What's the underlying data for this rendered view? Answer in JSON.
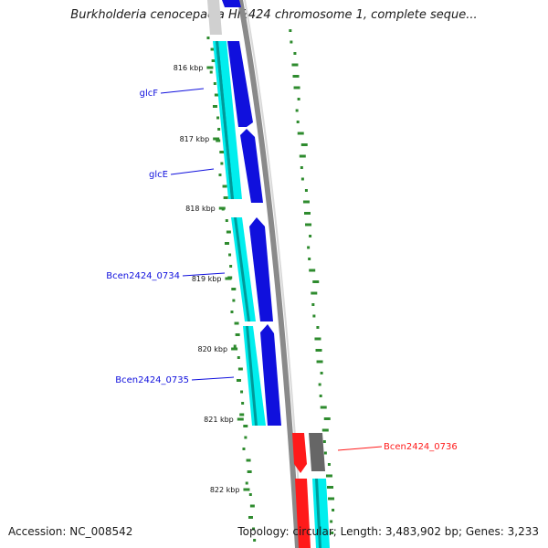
{
  "title": "Burkholderia cenocepacia HI2424 chromosome 1, complete seque...",
  "footer": {
    "accession": "Accession: NC_008542",
    "summary": "Topology: circular; Length: 3,483,902 bp; Genes: 3,233"
  },
  "ticks": [
    "816 kbp",
    "817 kbp",
    "818 kbp",
    "819 kbp",
    "820 kbp",
    "821 kbp",
    "822 kbp"
  ],
  "genes": [
    {
      "label": "glcF",
      "strand": "forward",
      "color": "#1010dd"
    },
    {
      "label": "glcE",
      "strand": "forward",
      "color": "#1010dd"
    },
    {
      "label": "Bcen2424_0734",
      "strand": "forward",
      "color": "#1010dd"
    },
    {
      "label": "Bcen2424_0735",
      "strand": "forward",
      "color": "#1010dd"
    },
    {
      "label": "Bcen2424_0736",
      "strand": "reverse",
      "color": "#ff1a1a"
    }
  ],
  "colors": {
    "forward_cds": "#1010dd",
    "reverse_cds": "#ff1a1a",
    "gene_track": "#00eeee",
    "backbone": "#888888",
    "other_gene": "#666666",
    "tick_marks": "#2e8b2e"
  }
}
